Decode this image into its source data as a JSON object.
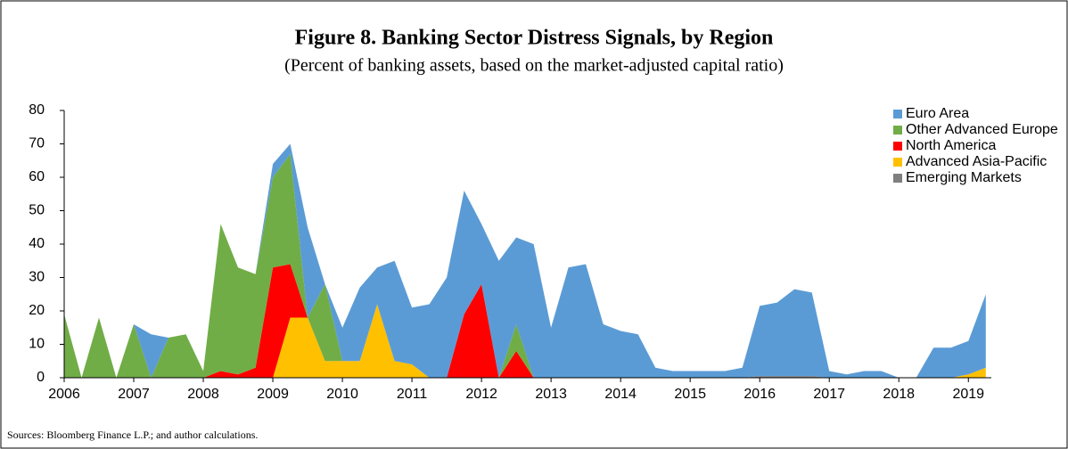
{
  "chart_data": {
    "type": "stacked_area",
    "title": "Figure 8. Banking Sector Distress Signals, by Region",
    "subtitle": "(Percent of banking assets, based on the market-adjusted capital ratio)",
    "source": "Sources: Bloomberg Finance L.P.; and author calculations.",
    "x": [
      2006.0,
      2006.25,
      2006.5,
      2006.75,
      2007.0,
      2007.25,
      2007.5,
      2007.75,
      2008.0,
      2008.25,
      2008.5,
      2008.75,
      2009.0,
      2009.25,
      2009.5,
      2009.75,
      2010.0,
      2010.25,
      2010.5,
      2010.75,
      2011.0,
      2011.25,
      2011.5,
      2011.75,
      2012.0,
      2012.25,
      2012.5,
      2012.75,
      2013.0,
      2013.25,
      2013.5,
      2013.75,
      2014.0,
      2014.25,
      2014.5,
      2014.75,
      2015.0,
      2015.25,
      2015.5,
      2015.75,
      2016.0,
      2016.25,
      2016.5,
      2016.75,
      2017.0,
      2017.25,
      2017.5,
      2017.75,
      2018.0,
      2018.25,
      2018.5,
      2018.75,
      2019.0,
      2019.25
    ],
    "series": [
      {
        "name": "Euro Area",
        "color": "#5b9bd5",
        "values": [
          0,
          0,
          0,
          0,
          0,
          13,
          0,
          0,
          0,
          0,
          0,
          0,
          4,
          3,
          27,
          0,
          10,
          22,
          11,
          30,
          17,
          22,
          30,
          37,
          18,
          35,
          26,
          40,
          15,
          33,
          34,
          16,
          14,
          13,
          3,
          2,
          2,
          2,
          2,
          3,
          21,
          22,
          26,
          25,
          2,
          1,
          2,
          2,
          0,
          0,
          9,
          9,
          10,
          22
        ]
      },
      {
        "name": "Other Advanced Europe",
        "color": "#70ad47",
        "values": [
          19,
          0,
          18,
          0,
          16,
          0,
          12,
          13,
          2,
          44,
          32,
          28,
          27,
          33,
          0,
          23,
          0,
          0,
          0,
          0,
          0,
          0,
          0,
          0,
          0,
          0,
          8,
          0,
          0,
          0,
          0,
          0,
          0,
          0,
          0,
          0,
          0,
          0,
          0,
          0,
          0,
          0,
          0,
          0,
          0,
          0,
          0,
          0,
          0,
          0,
          0,
          0,
          0,
          0
        ]
      },
      {
        "name": "North America",
        "color": "#ff0000",
        "values": [
          0,
          0,
          0,
          0,
          0,
          0,
          0,
          0,
          0,
          2,
          1,
          3,
          33,
          16,
          0,
          0,
          0,
          0,
          0,
          0,
          0,
          0,
          0,
          19,
          28,
          0,
          8,
          0,
          0,
          0,
          0,
          0,
          0,
          0,
          0,
          0,
          0,
          0,
          0,
          0,
          0,
          0,
          0,
          0,
          0,
          0,
          0,
          0,
          0,
          0,
          0,
          0,
          0,
          0
        ]
      },
      {
        "name": "Advanced Asia-Pacific",
        "color": "#ffc000",
        "values": [
          0,
          0,
          0,
          0,
          0,
          0,
          0,
          0,
          0,
          0,
          0,
          0,
          0,
          18,
          18,
          5,
          5,
          5,
          22,
          5,
          4,
          0,
          0,
          0,
          0,
          0,
          0,
          0,
          0,
          0,
          0,
          0,
          0,
          0,
          0,
          0,
          0,
          0,
          0,
          0,
          0,
          0,
          0,
          0,
          0,
          0,
          0,
          0,
          0,
          0,
          0,
          0,
          1,
          3
        ]
      },
      {
        "name": "Emerging Markets",
        "color": "#7f7f7f",
        "values": [
          0,
          0,
          0,
          0,
          0,
          0,
          0,
          0,
          0,
          0,
          0,
          0,
          0,
          0,
          0,
          0,
          0,
          0,
          0,
          0,
          0,
          0,
          0,
          0,
          0,
          0,
          0,
          0,
          0,
          0,
          0,
          0,
          0,
          0,
          0,
          0,
          0,
          0,
          0,
          0,
          0.5,
          0.5,
          0.5,
          0.5,
          0,
          0,
          0,
          0,
          0,
          0,
          0,
          0,
          0,
          0
        ]
      }
    ],
    "xlim": [
      2006,
      2019.33
    ],
    "xticks": [
      2006,
      2007,
      2008,
      2009,
      2010,
      2011,
      2012,
      2013,
      2014,
      2015,
      2016,
      2017,
      2018,
      2019
    ],
    "ylim": [
      0,
      80
    ],
    "yticks": [
      0,
      10,
      20,
      30,
      40,
      50,
      60,
      70,
      80
    ]
  }
}
